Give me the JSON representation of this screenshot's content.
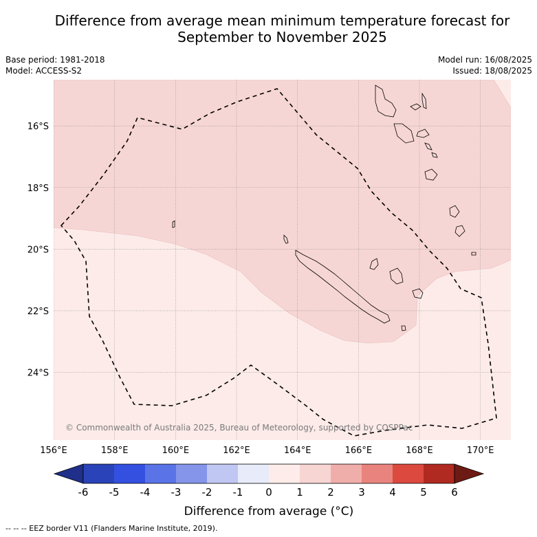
{
  "title_line1": "Difference from average mean minimum temperature forecast for",
  "title_line2": "September to November 2025",
  "meta": {
    "base_period": "Base period: 1981-2018",
    "model": "Model: ACCESS-S2",
    "model_run": "Model run: 16/08/2025",
    "issued": "Issued: 18/08/2025"
  },
  "map": {
    "lon_range": [
      156,
      171
    ],
    "lat_range": [
      -26.2,
      -14.5
    ],
    "lon_ticks": [
      {
        "value": 156,
        "label": "156°E"
      },
      {
        "value": 158,
        "label": "158°E"
      },
      {
        "value": 160,
        "label": "160°E"
      },
      {
        "value": 162,
        "label": "162°E"
      },
      {
        "value": 164,
        "label": "164°E"
      },
      {
        "value": 166,
        "label": "166°E"
      },
      {
        "value": 168,
        "label": "168°E"
      },
      {
        "value": 170,
        "label": "170°E"
      }
    ],
    "lat_ticks": [
      {
        "value": -16,
        "label": "16°S"
      },
      {
        "value": -18,
        "label": "18°S"
      },
      {
        "value": -20,
        "label": "20°S"
      },
      {
        "value": -22,
        "label": "22°S"
      },
      {
        "value": -24,
        "label": "24°S"
      }
    ],
    "copyright": "© Commonwealth of Australia 2025, Bureau of Meteorology, supported by COSPPac"
  },
  "colorbar": {
    "title": "Difference from average (°C)",
    "labels": [
      "-6",
      "-5",
      "-4",
      "-3",
      "-2",
      "-1",
      "0",
      "1",
      "2",
      "3",
      "4",
      "5",
      "6"
    ],
    "colors": [
      "#1f2f8a",
      "#2a43b8",
      "#3350e0",
      "#5a73e6",
      "#8495ea",
      "#c0c7f2",
      "#e8ebf9",
      "#fdecea",
      "#f7d5d3",
      "#f0aeaa",
      "#e8847d",
      "#dc4a3f",
      "#b02a22",
      "#6e1a14"
    ]
  },
  "footer": "--  --  -- EEZ border V11 (Flanders Marine Institute, 2019)."
}
